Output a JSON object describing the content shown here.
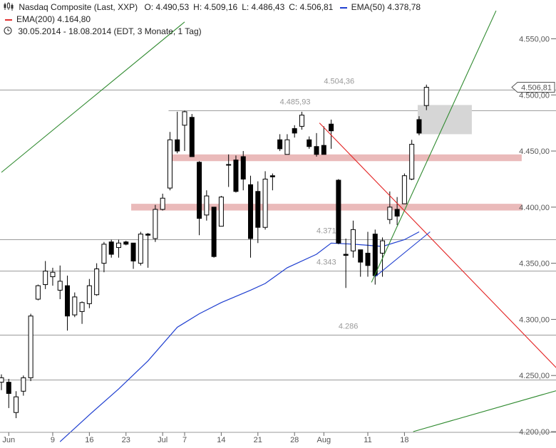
{
  "header": {
    "title": "Nasdaq Composite (Last, XXP)",
    "ohlc": [
      {
        "key": "O:",
        "value": "4.490,53"
      },
      {
        "key": "H:",
        "value": "4.509,16"
      },
      {
        "key": "L:",
        "value": "4.486,43"
      },
      {
        "key": "C:",
        "value": "4.506,81"
      }
    ],
    "ema50_label": "EMA(50)",
    "ema50_value": "4.378,78",
    "ema200_label": "EMA(200)",
    "ema200_value": "4.164,80",
    "range": "30.05.2014 - 18.08.2014 (EDT, 3 Monate, 1 Tag)",
    "icons": [
      "candlestick-icon",
      "clock-icon"
    ]
  },
  "colors": {
    "up": "#ffffff",
    "down": "#000000",
    "ema50": "#1f3fd0",
    "ema200": "#e03030",
    "trend_up": "#2f8a2f",
    "trend_down": "#e32424",
    "zone": "#e8b3b3",
    "box": "#d6d6d6",
    "hline": "#9a9a9a"
  },
  "chart_data": {
    "type": "candlestick",
    "ylim": [
      4200,
      4570
    ],
    "y_ticks": [
      {
        "v": 4200,
        "label": "4.200,00"
      },
      {
        "v": 4250,
        "label": "4.250,00"
      },
      {
        "v": 4300,
        "label": "4.300,00"
      },
      {
        "v": 4350,
        "label": "4.350,00"
      },
      {
        "v": 4400,
        "label": "4.400,00"
      },
      {
        "v": 4450,
        "label": "4.450,00"
      },
      {
        "v": 4500,
        "label": "4.500,00"
      },
      {
        "v": 4550,
        "label": "4.550,00"
      }
    ],
    "last_price": {
      "v": 4506.81,
      "label": "4.506,81"
    },
    "x_labels": [
      {
        "i": 1,
        "label": "Jun"
      },
      {
        "i": 7,
        "label": "9"
      },
      {
        "i": 12,
        "label": "16"
      },
      {
        "i": 17,
        "label": "23"
      },
      {
        "i": 22,
        "label": "Jul"
      },
      {
        "i": 25,
        "label": "7"
      },
      {
        "i": 30,
        "label": "14"
      },
      {
        "i": 35,
        "label": "21"
      },
      {
        "i": 40,
        "label": "28"
      },
      {
        "i": 44,
        "label": "Aug"
      },
      {
        "i": 50,
        "label": "11"
      },
      {
        "i": 55,
        "label": "18"
      }
    ],
    "candles": [
      {
        "o": 4244,
        "h": 4251,
        "l": 4237,
        "c": 4248
      },
      {
        "o": 4244,
        "h": 4247,
        "l": 4221,
        "c": 4234
      },
      {
        "o": 4217,
        "h": 4236,
        "l": 4212,
        "c": 4231
      },
      {
        "o": 4236,
        "h": 4250,
        "l": 4232,
        "c": 4248
      },
      {
        "o": 4248,
        "h": 4305,
        "l": 4245,
        "c": 4303
      },
      {
        "o": 4318,
        "h": 4331,
        "l": 4317,
        "c": 4330
      },
      {
        "o": 4331,
        "h": 4352,
        "l": 4327,
        "c": 4343
      },
      {
        "o": 4338,
        "h": 4346,
        "l": 4330,
        "c": 4342
      },
      {
        "o": 4326,
        "h": 4348,
        "l": 4318,
        "c": 4334
      },
      {
        "o": 4330,
        "h": 4339,
        "l": 4290,
        "c": 4303
      },
      {
        "o": 4304,
        "h": 4324,
        "l": 4302,
        "c": 4320
      },
      {
        "o": 4307,
        "h": 4316,
        "l": 4296,
        "c": 4315
      },
      {
        "o": 4314,
        "h": 4336,
        "l": 4310,
        "c": 4330
      },
      {
        "o": 4322,
        "h": 4350,
        "l": 4321,
        "c": 4345
      },
      {
        "o": 4350,
        "h": 4369,
        "l": 4342,
        "c": 4367
      },
      {
        "o": 4369,
        "h": 4371,
        "l": 4355,
        "c": 4358
      },
      {
        "o": 4364,
        "h": 4371,
        "l": 4355,
        "c": 4368
      },
      {
        "o": 4369,
        "h": 4370,
        "l": 4366,
        "c": 4367
      },
      {
        "o": 4368,
        "h": 4368,
        "l": 4345,
        "c": 4352
      },
      {
        "o": 4350,
        "h": 4378,
        "l": 4348,
        "c": 4376
      },
      {
        "o": 4376,
        "h": 4377,
        "l": 4346,
        "c": 4375
      },
      {
        "o": 4372,
        "h": 4402,
        "l": 4369,
        "c": 4398
      },
      {
        "o": 4398,
        "h": 4412,
        "l": 4397,
        "c": 4408
      },
      {
        "o": 4417,
        "h": 4467,
        "l": 4415,
        "c": 4460
      },
      {
        "o": 4460,
        "h": 4485,
        "l": 4448,
        "c": 4450
      },
      {
        "o": 4473,
        "h": 4486,
        "l": 4450,
        "c": 4485
      },
      {
        "o": 4480,
        "h": 4483,
        "l": 4445,
        "c": 4445
      },
      {
        "o": 4440,
        "h": 4441,
        "l": 4375,
        "c": 4390
      },
      {
        "o": 4393,
        "h": 4415,
        "l": 4388,
        "c": 4410
      },
      {
        "o": 4400,
        "h": 4400,
        "l": 4355,
        "c": 4356
      },
      {
        "o": 4383,
        "h": 4410,
        "l": 4383,
        "c": 4409
      },
      {
        "o": 4438,
        "h": 4447,
        "l": 4418,
        "c": 4438
      },
      {
        "o": 4442,
        "h": 4446,
        "l": 4413,
        "c": 4414
      },
      {
        "o": 4445,
        "h": 4450,
        "l": 4415,
        "c": 4425
      },
      {
        "o": 4420,
        "h": 4428,
        "l": 4355,
        "c": 4372
      },
      {
        "o": 4414,
        "h": 4423,
        "l": 4368,
        "c": 4382
      },
      {
        "o": 4382,
        "h": 4432,
        "l": 4380,
        "c": 4425
      },
      {
        "o": 4428,
        "h": 4430,
        "l": 4415,
        "c": 4427
      },
      {
        "o": 4460,
        "h": 4465,
        "l": 4450,
        "c": 4452
      },
      {
        "o": 4447,
        "h": 4465,
        "l": 4447,
        "c": 4460
      },
      {
        "o": 4470,
        "h": 4473,
        "l": 4462,
        "c": 4466
      },
      {
        "o": 4472,
        "h": 4485,
        "l": 4469,
        "c": 4482
      },
      {
        "o": 4460,
        "h": 4463,
        "l": 4452,
        "c": 4454
      },
      {
        "o": 4454,
        "h": 4466,
        "l": 4445,
        "c": 4447
      },
      {
        "o": 4455,
        "h": 4472,
        "l": 4450,
        "c": 4447
      },
      {
        "o": 4474,
        "h": 4478,
        "l": 4452,
        "c": 4468
      },
      {
        "o": 4424,
        "h": 4425,
        "l": 4367,
        "c": 4368
      },
      {
        "o": 4358,
        "h": 4372,
        "l": 4328,
        "c": 4357
      },
      {
        "o": 4361,
        "h": 4388,
        "l": 4355,
        "c": 4380
      },
      {
        "o": 4362,
        "h": 4362,
        "l": 4338,
        "c": 4351
      },
      {
        "o": 4359,
        "h": 4378,
        "l": 4338,
        "c": 4348
      },
      {
        "o": 4376,
        "h": 4380,
        "l": 4331,
        "c": 4339
      },
      {
        "o": 4359,
        "h": 4373,
        "l": 4338,
        "c": 4370
      },
      {
        "o": 4389,
        "h": 4414,
        "l": 4385,
        "c": 4400
      },
      {
        "o": 4398,
        "h": 4409,
        "l": 4384,
        "c": 4392
      },
      {
        "o": 4403,
        "h": 4430,
        "l": 4403,
        "c": 4428
      },
      {
        "o": 4425,
        "h": 4460,
        "l": 4424,
        "c": 4456
      },
      {
        "o": 4478,
        "h": 4481,
        "l": 4464,
        "c": 4466
      },
      {
        "o": 4490.53,
        "h": 4509.16,
        "l": 4486.43,
        "c": 4506.81
      }
    ],
    "ema50": [
      {
        "i": 8,
        "v": 4191
      },
      {
        "i": 12,
        "v": 4215
      },
      {
        "i": 16,
        "v": 4238
      },
      {
        "i": 20,
        "v": 4263
      },
      {
        "i": 24,
        "v": 4293
      },
      {
        "i": 27,
        "v": 4305
      },
      {
        "i": 30,
        "v": 4315
      },
      {
        "i": 34,
        "v": 4326
      },
      {
        "i": 36,
        "v": 4332
      },
      {
        "i": 39,
        "v": 4346
      },
      {
        "i": 43,
        "v": 4358
      },
      {
        "i": 45,
        "v": 4368
      },
      {
        "i": 48,
        "v": 4367
      },
      {
        "i": 52,
        "v": 4365
      },
      {
        "i": 55,
        "v": 4371
      },
      {
        "i": 57,
        "v": 4378
      }
    ],
    "levels": [
      {
        "v": 4504.36,
        "label": "4.504,36",
        "from": 0,
        "label_i": 44
      },
      {
        "v": 4485.93,
        "label": "4.485,93",
        "from": 23,
        "label_i": 38
      },
      {
        "v": 4371,
        "label": "4.371",
        "from": 0,
        "label_i": 43
      },
      {
        "v": 4343,
        "label": "4.343",
        "from": 0,
        "label_i": 43
      },
      {
        "v": 4286,
        "label": "4.286",
        "from": 0,
        "label_i": 46
      },
      {
        "v": 4246,
        "label": "",
        "from": 0,
        "label_i": 0
      }
    ],
    "zones": [
      {
        "from": 23,
        "to": 71,
        "y1": 4441,
        "y2": 4447
      },
      {
        "from": 18,
        "to": 71,
        "y1": 4397,
        "y2": 4403
      }
    ],
    "box": {
      "from": 57,
      "to": 64,
      "y1": 4465,
      "y2": 4491
    },
    "trendlines": [
      {
        "kind": "trend_up",
        "p1": {
          "i": 0,
          "v": 4431
        },
        "p2": {
          "i": 25,
          "v": 4565
        }
      },
      {
        "kind": "trend_up",
        "p1": {
          "i": 50.5,
          "v": 4333
        },
        "p2": {
          "i": 67.5,
          "v": 4575
        }
      },
      {
        "kind": "trend_up",
        "p1": {
          "i": 56.2,
          "v": 4200
        },
        "p2": {
          "i": 76,
          "v": 4237
        }
      },
      {
        "kind": "trend_down",
        "p1": {
          "i": 43.4,
          "v": 4475
        },
        "p2": {
          "i": 76,
          "v": 4255
        }
      },
      {
        "kind": "ema50",
        "p1": {
          "i": 51,
          "v": 4338
        },
        "p2": {
          "i": 58.5,
          "v": 4378
        }
      }
    ]
  }
}
